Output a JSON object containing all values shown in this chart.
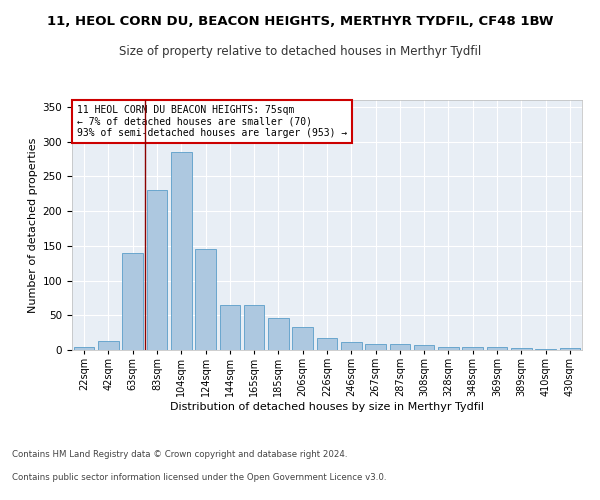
{
  "title1": "11, HEOL CORN DU, BEACON HEIGHTS, MERTHYR TYDFIL, CF48 1BW",
  "title2": "Size of property relative to detached houses in Merthyr Tydfil",
  "xlabel": "Distribution of detached houses by size in Merthyr Tydfil",
  "ylabel": "Number of detached properties",
  "categories": [
    "22sqm",
    "42sqm",
    "63sqm",
    "83sqm",
    "104sqm",
    "124sqm",
    "144sqm",
    "165sqm",
    "185sqm",
    "206sqm",
    "226sqm",
    "246sqm",
    "267sqm",
    "287sqm",
    "308sqm",
    "328sqm",
    "348sqm",
    "369sqm",
    "389sqm",
    "410sqm",
    "430sqm"
  ],
  "values": [
    5,
    13,
    140,
    230,
    285,
    145,
    65,
    65,
    46,
    33,
    17,
    12,
    9,
    9,
    7,
    5,
    4,
    4,
    3,
    2,
    3
  ],
  "bar_color": "#adc8e0",
  "bar_edge_color": "#5a9ec9",
  "vline_x": 2.5,
  "vline_color": "#8b0000",
  "annotation_line1": "11 HEOL CORN DU BEACON HEIGHTS: 75sqm",
  "annotation_line2": "← 7% of detached houses are smaller (70)",
  "annotation_line3": "93% of semi-detached houses are larger (953) →",
  "annotation_box_color": "#ffffff",
  "annotation_box_edge": "#cc0000",
  "ylim": [
    0,
    360
  ],
  "yticks": [
    0,
    50,
    100,
    150,
    200,
    250,
    300,
    350
  ],
  "background_color": "#e8eef5",
  "footer_line1": "Contains HM Land Registry data © Crown copyright and database right 2024.",
  "footer_line2": "Contains public sector information licensed under the Open Government Licence v3.0.",
  "title1_fontsize": 9.5,
  "title2_fontsize": 8.5
}
